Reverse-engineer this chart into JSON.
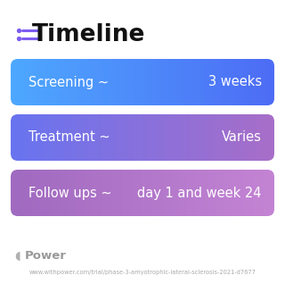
{
  "title": "Timeline",
  "background_color": "#ffffff",
  "rows": [
    {
      "label": "Screening ~",
      "value": "3 weeks",
      "color_left": "#4da8ff",
      "color_right": "#4d6cf5"
    },
    {
      "label": "Treatment ~",
      "value": "Varies",
      "color_left": "#6874f0",
      "color_right": "#a86ec8"
    },
    {
      "label": "Follow ups ~",
      "value": "day 1 and week 24",
      "color_left": "#a06ac0",
      "color_right": "#c484d4"
    }
  ],
  "footer_logo": "Power",
  "footer_url": "www.withpower.com/trial/phase-3-amyotrophic-lateral-sclerosis-2021-d7677",
  "title_fontsize": 19,
  "label_fontsize": 10.5,
  "value_fontsize": 10.5,
  "icon_color": "#7B5CF0",
  "title_color": "#111111"
}
